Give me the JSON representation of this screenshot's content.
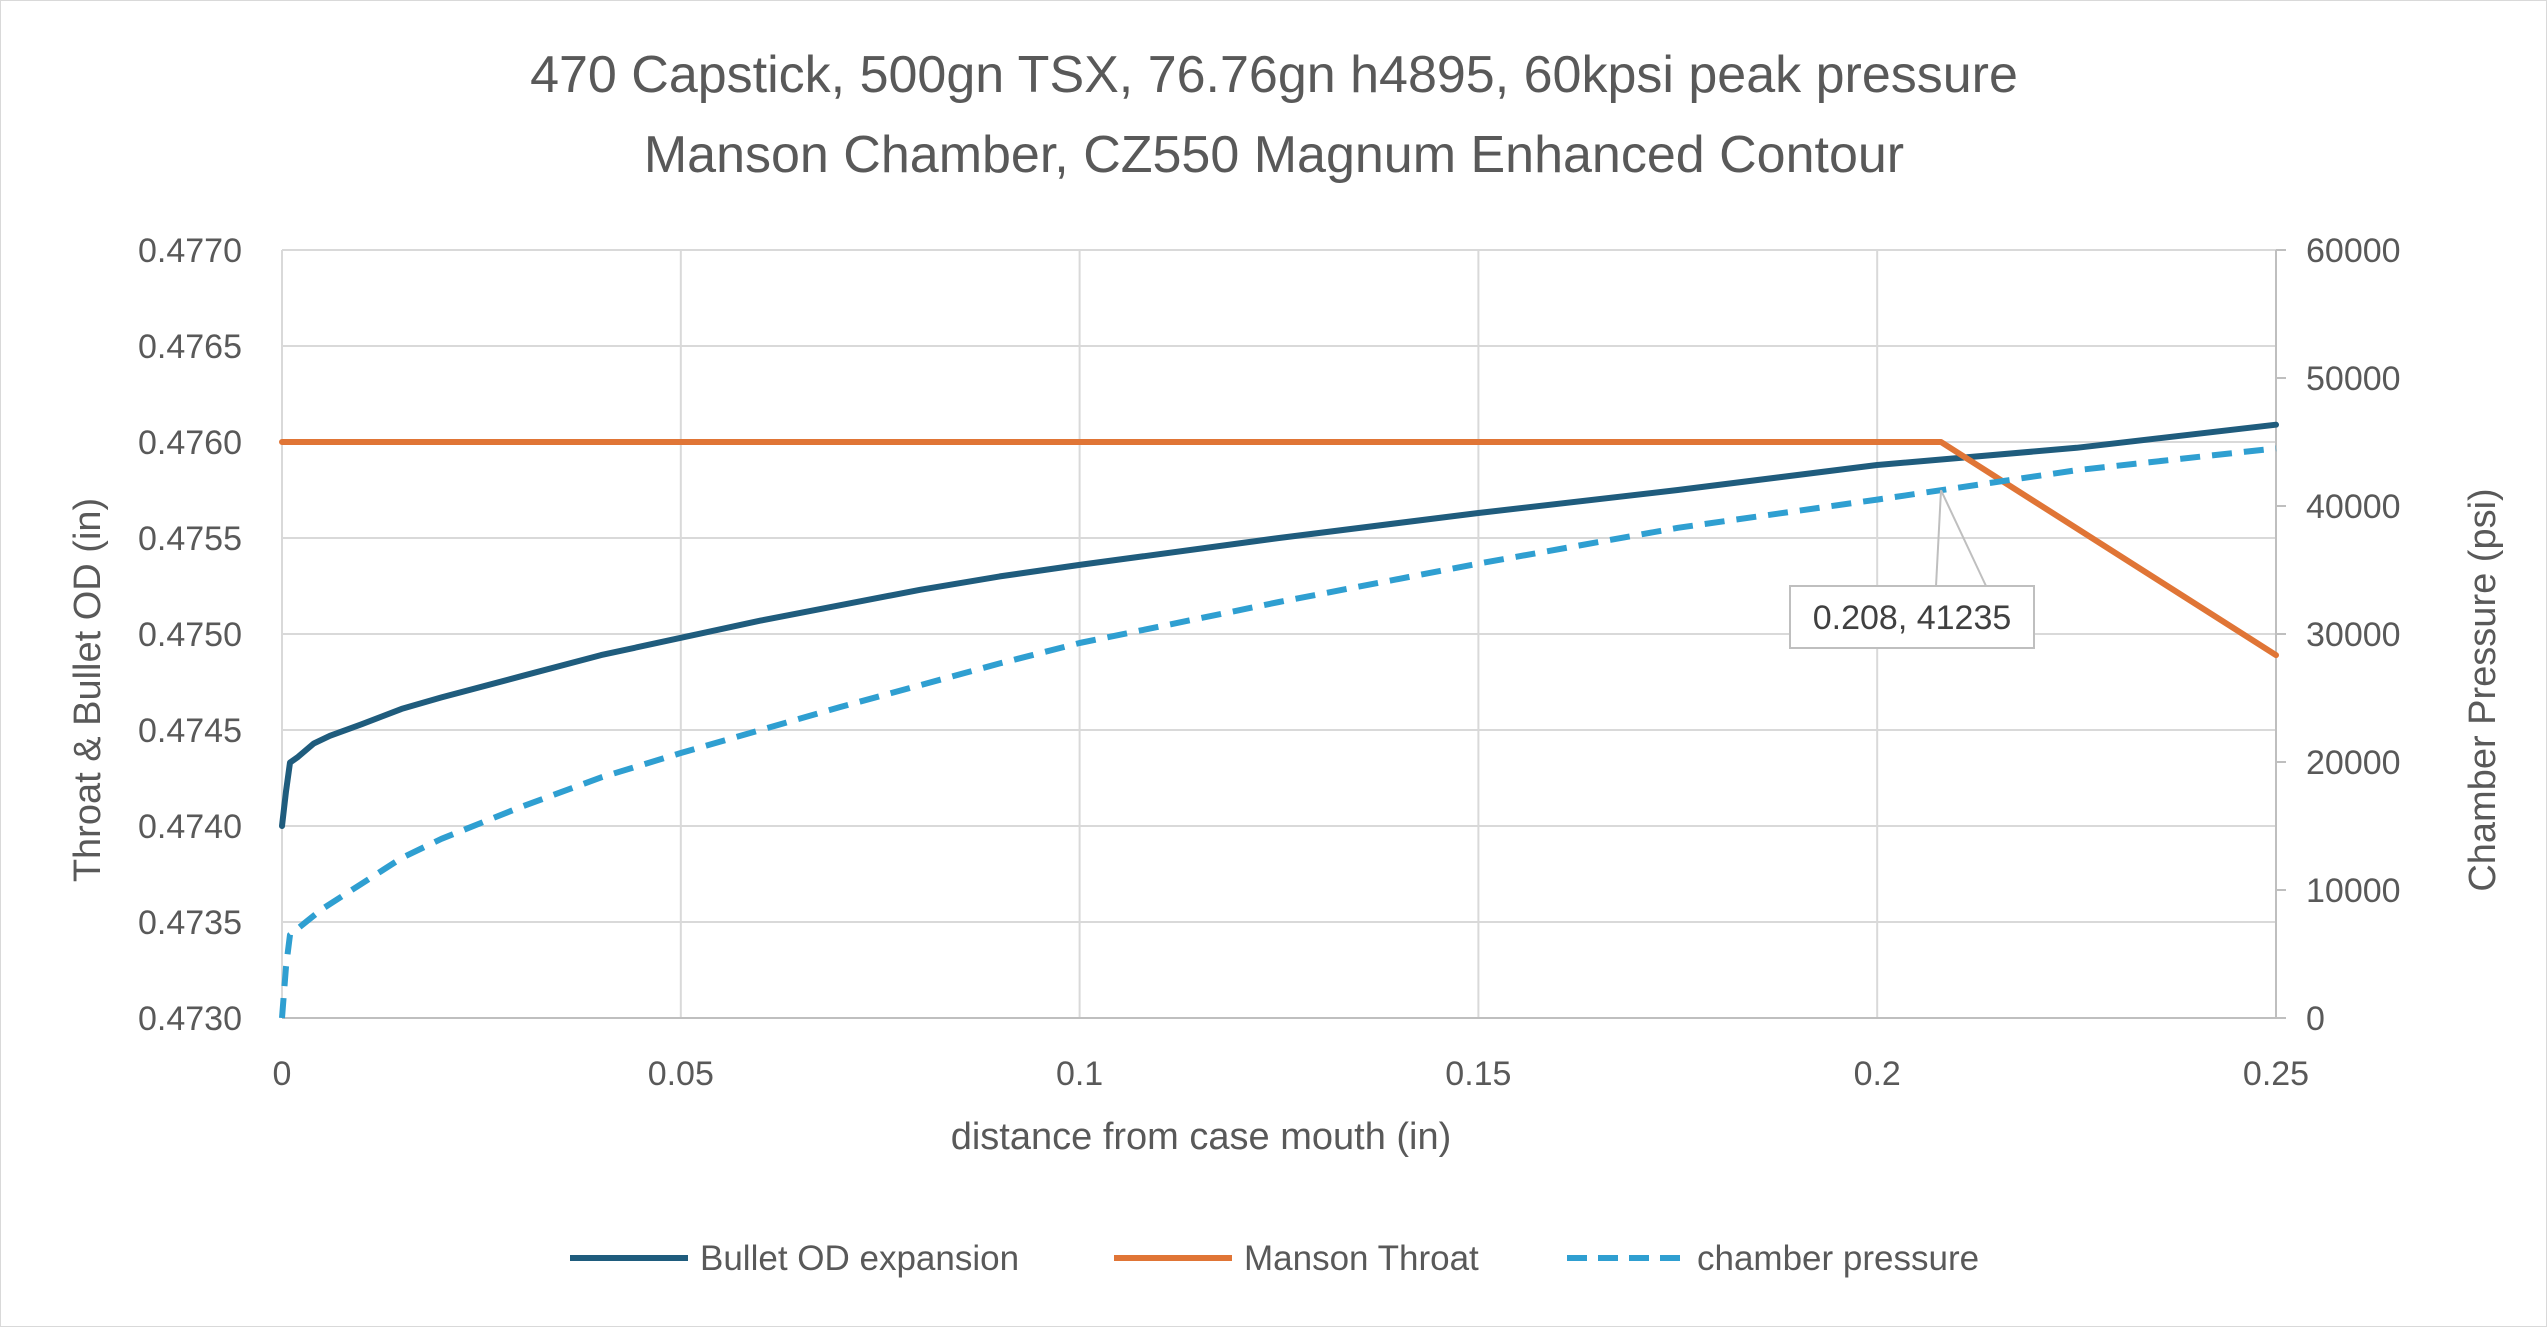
{
  "chart_data": {
    "type": "line",
    "title_lines": [
      "470 Capstick, 500gn TSX, 76.76gn h4895, 60kpsi peak pressure",
      "Manson Chamber, CZ550 Magnum Enhanced Contour"
    ],
    "xlabel": "distance from case mouth (in)",
    "ylabel": "Throat & Bullet OD (in)",
    "y2label": "Chamber Pressure (psi)",
    "xlim": [
      0,
      0.25
    ],
    "ylim": [
      0.473,
      0.477
    ],
    "y2lim": [
      0,
      60000
    ],
    "x_ticks": [
      "0",
      "0.05",
      "0.1",
      "0.15",
      "0.2",
      "0.25"
    ],
    "x_tick_values": [
      0,
      0.05,
      0.1,
      0.15,
      0.2,
      0.25
    ],
    "y_ticks": [
      "0.4730",
      "0.4735",
      "0.4740",
      "0.4745",
      "0.4750",
      "0.4755",
      "0.4760",
      "0.4765",
      "0.4770"
    ],
    "y_tick_values": [
      0.473,
      0.4735,
      0.474,
      0.4745,
      0.475,
      0.4755,
      0.476,
      0.4765,
      0.477
    ],
    "y2_ticks": [
      "0",
      "10000",
      "20000",
      "30000",
      "40000",
      "50000",
      "60000"
    ],
    "y2_tick_values": [
      0,
      10000,
      20000,
      30000,
      40000,
      50000,
      60000
    ],
    "grid": true,
    "legend_position": "bottom",
    "series": [
      {
        "name": "Bullet OD expansion",
        "axis": "left",
        "color": "#1f5c7d",
        "style": "solid",
        "points": [
          [
            0,
            0.474
          ],
          [
            0.0005,
            0.47418
          ],
          [
            0.001,
            0.47433
          ],
          [
            0.002,
            0.47436
          ],
          [
            0.004,
            0.47443
          ],
          [
            0.006,
            0.47447
          ],
          [
            0.01,
            0.47453
          ],
          [
            0.015,
            0.47461
          ],
          [
            0.02,
            0.47467
          ],
          [
            0.03,
            0.47478
          ],
          [
            0.04,
            0.47489
          ],
          [
            0.05,
            0.47498
          ],
          [
            0.06,
            0.47507
          ],
          [
            0.07,
            0.47515
          ],
          [
            0.08,
            0.47523
          ],
          [
            0.09,
            0.4753
          ],
          [
            0.1,
            0.47536
          ],
          [
            0.125,
            0.4755
          ],
          [
            0.15,
            0.47563
          ],
          [
            0.175,
            0.47575
          ],
          [
            0.2,
            0.47588
          ],
          [
            0.225,
            0.47597
          ],
          [
            0.25,
            0.47609
          ]
        ]
      },
      {
        "name": "Manson Throat",
        "axis": "left",
        "color": "#e07536",
        "style": "solid",
        "points": [
          [
            0,
            0.476
          ],
          [
            0.208,
            0.476
          ],
          [
            0.25,
            0.47489
          ]
        ]
      },
      {
        "name": "chamber pressure",
        "axis": "right",
        "color": "#2f9fd1",
        "style": "dashed",
        "points": [
          [
            0,
            0
          ],
          [
            0.0005,
            4000
          ],
          [
            0.001,
            6500
          ],
          [
            0.003,
            7500
          ],
          [
            0.005,
            8500
          ],
          [
            0.01,
            10500
          ],
          [
            0.015,
            12500
          ],
          [
            0.02,
            14000
          ],
          [
            0.03,
            16500
          ],
          [
            0.04,
            18800
          ],
          [
            0.05,
            20700
          ],
          [
            0.06,
            22500
          ],
          [
            0.07,
            24300
          ],
          [
            0.08,
            26000
          ],
          [
            0.09,
            27700
          ],
          [
            0.1,
            29300
          ],
          [
            0.125,
            32500
          ],
          [
            0.15,
            35500
          ],
          [
            0.175,
            38300
          ],
          [
            0.2,
            40500
          ],
          [
            0.208,
            41235
          ],
          [
            0.225,
            42800
          ],
          [
            0.25,
            44500
          ]
        ]
      }
    ],
    "annotation": {
      "text": "0.208, 41235",
      "x": 0.208,
      "y2": 41235
    }
  }
}
